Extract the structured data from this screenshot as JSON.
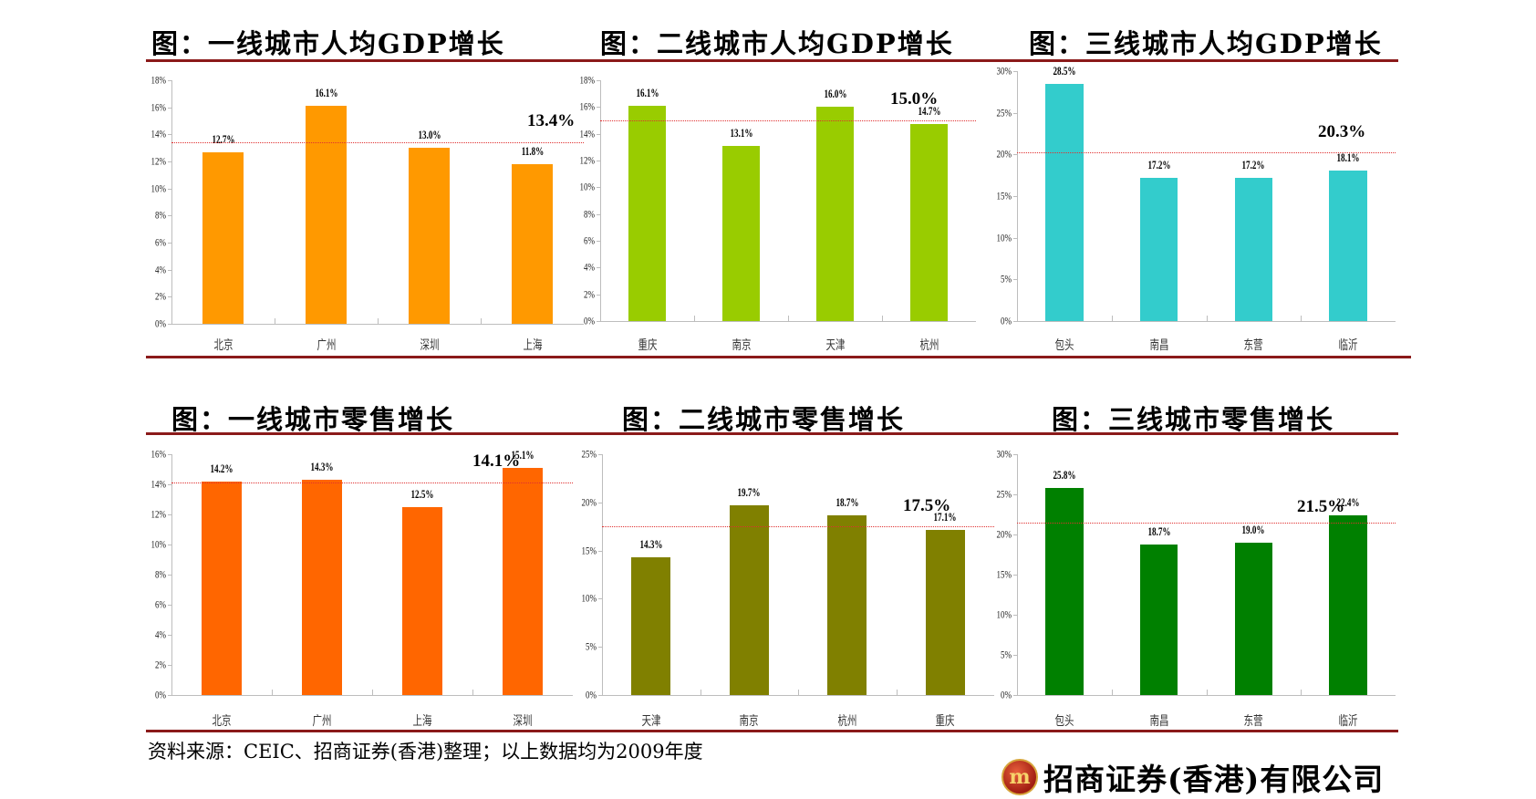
{
  "page": {
    "source_note": "资料来源：CEIC、招商证券(香港)整理；以上数据均为2009年度",
    "company_logo_text": "招商证券(香港)有限公司",
    "logo_mark": "m"
  },
  "chart_data": [
    {
      "id": "gdp_tier1",
      "type": "bar",
      "title": "图：一线城市人均GDP增长",
      "categories": [
        "北京",
        "广州",
        "深圳",
        "上海"
      ],
      "values": [
        12.7,
        16.1,
        13.0,
        11.8
      ],
      "value_labels": [
        "12.7%",
        "16.1%",
        "13.0%",
        "11.8%"
      ],
      "average": 13.4,
      "average_label": "13.4%",
      "ylim": [
        0,
        18
      ],
      "yticks": [
        "0%",
        "2%",
        "4%",
        "6%",
        "8%",
        "10%",
        "12%",
        "14%",
        "16%",
        "18%"
      ],
      "color": "#ff9900",
      "xlabel": "",
      "ylabel": ""
    },
    {
      "id": "gdp_tier2",
      "type": "bar",
      "title": "图：二线城市人均GDP增长",
      "categories": [
        "重庆",
        "南京",
        "天津",
        "杭州"
      ],
      "values": [
        16.1,
        13.1,
        16.0,
        14.7
      ],
      "value_labels": [
        "16.1%",
        "13.1%",
        "16.0%",
        "14.7%"
      ],
      "average": 15.0,
      "average_label": "15.0%",
      "ylim": [
        0,
        18
      ],
      "yticks": [
        "0%",
        "2%",
        "4%",
        "6%",
        "8%",
        "10%",
        "12%",
        "14%",
        "16%",
        "18%"
      ],
      "color": "#99cc00",
      "xlabel": "",
      "ylabel": ""
    },
    {
      "id": "gdp_tier3",
      "type": "bar",
      "title": "图：三线城市人均GDP增长",
      "categories": [
        "包头",
        "南昌",
        "东营",
        "临沂"
      ],
      "values": [
        28.5,
        17.2,
        17.2,
        18.1
      ],
      "value_labels": [
        "28.5%",
        "17.2%",
        "17.2%",
        "18.1%"
      ],
      "average": 20.3,
      "average_label": "20.3%",
      "ylim": [
        0,
        30
      ],
      "yticks": [
        "0%",
        "5%",
        "10%",
        "15%",
        "20%",
        "25%",
        "30%"
      ],
      "color": "#33cccc",
      "xlabel": "",
      "ylabel": ""
    },
    {
      "id": "retail_tier1",
      "type": "bar",
      "title": "图：一线城市零售增长",
      "categories": [
        "北京",
        "广州",
        "上海",
        "深圳"
      ],
      "values": [
        14.2,
        14.3,
        12.5,
        15.1
      ],
      "value_labels": [
        "14.2%",
        "14.3%",
        "12.5%",
        "15.1%"
      ],
      "average": 14.1,
      "average_label": "14.1%",
      "ylim": [
        0,
        16
      ],
      "yticks": [
        "0%",
        "2%",
        "4%",
        "6%",
        "8%",
        "10%",
        "12%",
        "14%",
        "16%"
      ],
      "color": "#ff6600",
      "xlabel": "",
      "ylabel": ""
    },
    {
      "id": "retail_tier2",
      "type": "bar",
      "title": "图：二线城市零售增长",
      "categories": [
        "天津",
        "南京",
        "杭州",
        "重庆"
      ],
      "values": [
        14.3,
        19.7,
        18.7,
        17.1
      ],
      "value_labels": [
        "14.3%",
        "19.7%",
        "18.7%",
        "17.1%"
      ],
      "average": 17.5,
      "average_label": "17.5%",
      "ylim": [
        0,
        25
      ],
      "yticks": [
        "0%",
        "5%",
        "10%",
        "15%",
        "20%",
        "25%"
      ],
      "color": "#808000",
      "xlabel": "",
      "ylabel": ""
    },
    {
      "id": "retail_tier3",
      "type": "bar",
      "title": "图：三线城市零售增长",
      "categories": [
        "包头",
        "南昌",
        "东营",
        "临沂"
      ],
      "values": [
        25.8,
        18.7,
        19.0,
        22.4
      ],
      "value_labels": [
        "25.8%",
        "18.7%",
        "19.0%",
        "22.4%"
      ],
      "average": 21.5,
      "average_label": "21.5%",
      "ylim": [
        0,
        30
      ],
      "yticks": [
        "0%",
        "5%",
        "10%",
        "15%",
        "20%",
        "25%",
        "30%"
      ],
      "color": "#008000",
      "xlabel": "",
      "ylabel": ""
    }
  ]
}
